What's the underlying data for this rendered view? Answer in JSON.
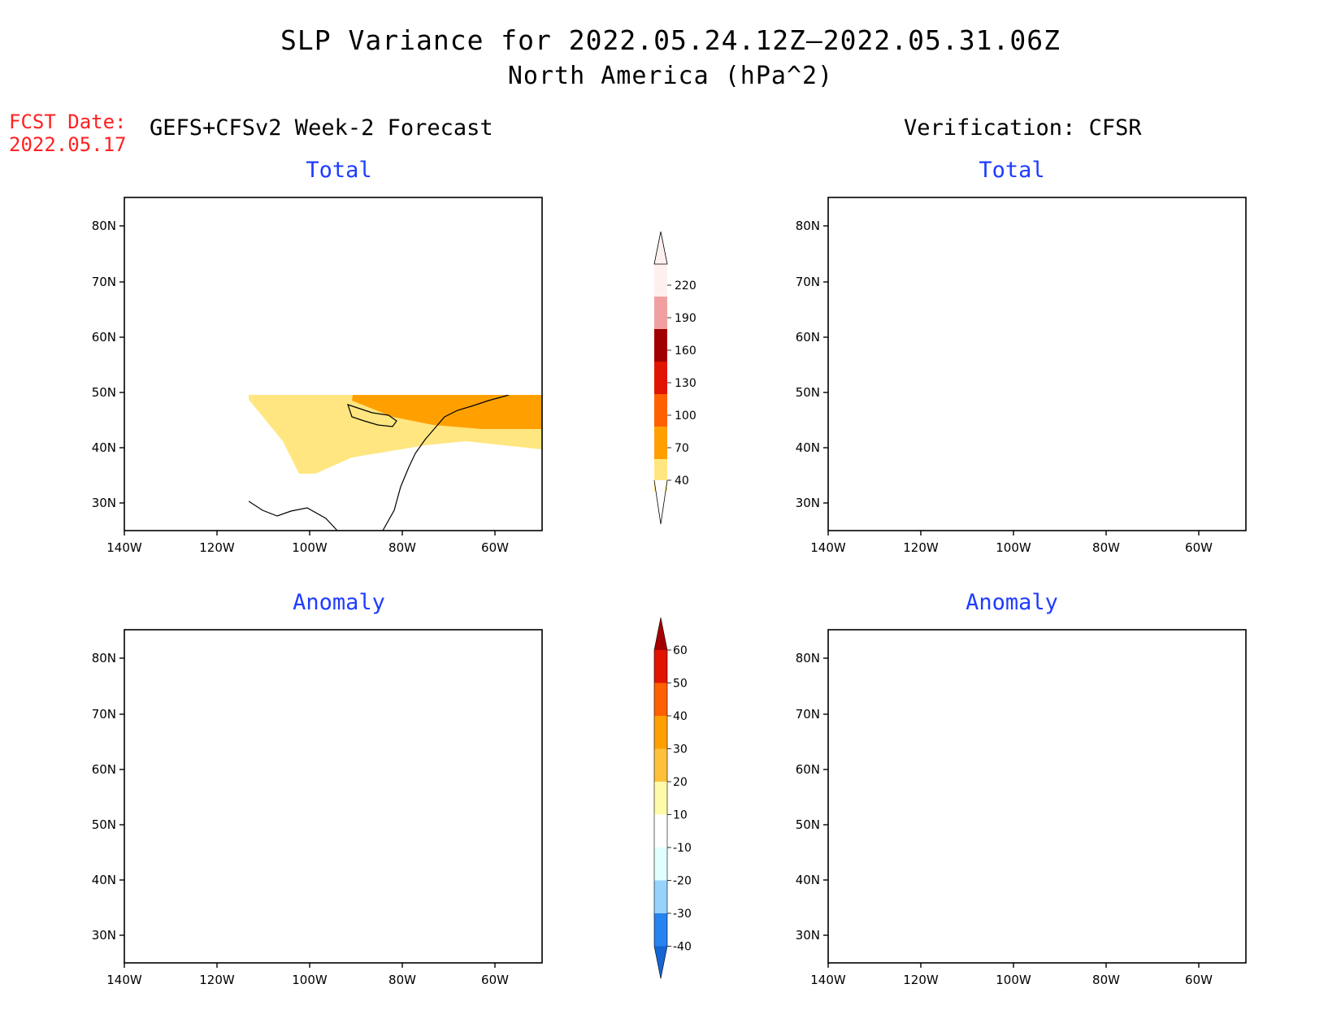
{
  "header": {
    "title_line1": "SLP Variance for 2022.05.24.12Z–2022.05.31.06Z",
    "title_line2": "North America (hPa^2)",
    "fcst_date_label": "FCST Date:",
    "fcst_date_value": "2022.05.17",
    "left_column_title": "GEFS+CFSv2 Week-2 Forecast",
    "right_column_title": "Verification: CFSR"
  },
  "panels": [
    {
      "id": "forecast-total",
      "title": "Total"
    },
    {
      "id": "verification-total",
      "title": "Total"
    },
    {
      "id": "forecast-anomaly",
      "title": "Anomaly"
    },
    {
      "id": "verification-anomaly",
      "title": "Anomaly"
    }
  ],
  "axes": {
    "lat_ticks": [
      "80N",
      "70N",
      "60N",
      "50N",
      "40N",
      "30N"
    ],
    "lon_ticks": [
      "140W",
      "120W",
      "100W",
      "80W",
      "60W"
    ],
    "lat_range": [
      25,
      85
    ],
    "lon_range": [
      -140,
      -50
    ]
  },
  "colorbars": {
    "total": {
      "levels": [
        "40",
        "70",
        "100",
        "130",
        "160",
        "190",
        "220"
      ],
      "colors": [
        "#ffe680",
        "#ffa000",
        "#ff6000",
        "#e01400",
        "#a00000",
        "#f0a0a0",
        "#fff0f0"
      ]
    },
    "anomaly": {
      "levels": [
        "-40",
        "-30",
        "-20",
        "-10",
        "10",
        "20",
        "30",
        "40",
        "50",
        "60"
      ],
      "colors": [
        "#1464d2",
        "#2882f0",
        "#96d2fa",
        "#e1ffff",
        "#ffffff",
        "#fffaaa",
        "#ffc03c",
        "#ffa000",
        "#ff6000",
        "#e11400",
        "#a50000"
      ]
    }
  },
  "legend_colors": {
    "title_blue": "#1e3cff",
    "fcst_red": "#ff2020"
  }
}
